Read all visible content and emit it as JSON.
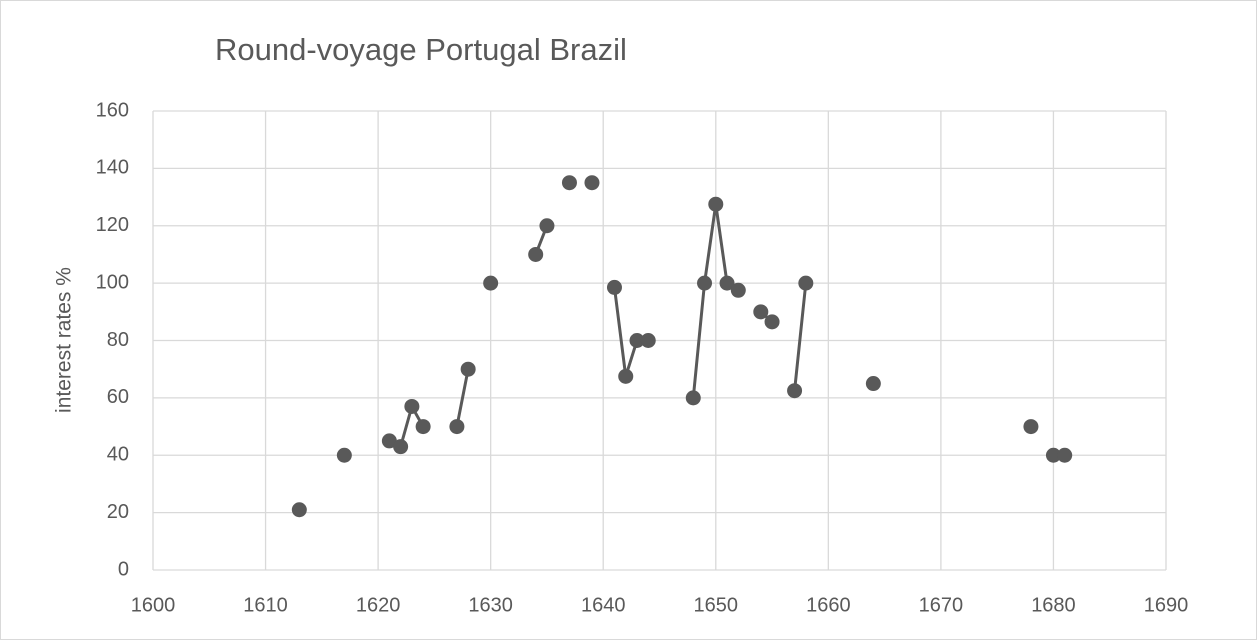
{
  "chart_data": {
    "type": "line",
    "title": "Round-voyage Portugal Brazil",
    "y_label": "interest rates %",
    "x": [
      1613,
      null,
      1617,
      null,
      1621,
      1622,
      1623,
      1624,
      null,
      1627,
      1628,
      null,
      1630,
      null,
      1634,
      1635,
      null,
      1637,
      null,
      1639,
      null,
      1641,
      1642,
      1643,
      1644,
      null,
      1648,
      1649,
      1650,
      1651,
      1652,
      null,
      1654,
      1655,
      null,
      1657,
      1658,
      null,
      1664,
      null,
      1678,
      null,
      1680,
      1681
    ],
    "series": [
      {
        "color": "#595959",
        "values": [
          21,
          null,
          40,
          null,
          45,
          43,
          57,
          50,
          null,
          50,
          70,
          null,
          100,
          null,
          110,
          120,
          null,
          135,
          null,
          135,
          null,
          98.5,
          67.5,
          80,
          80,
          null,
          60,
          100,
          127.5,
          100,
          97.5,
          null,
          90,
          86.5,
          null,
          62.5,
          100,
          null,
          65,
          null,
          50,
          null,
          40,
          40
        ]
      }
    ],
    "xlim": [
      1600,
      1690
    ],
    "xticks": [
      1600,
      1610,
      1620,
      1630,
      1640,
      1650,
      1660,
      1670,
      1680,
      1690
    ],
    "ylim": [
      0,
      160
    ],
    "yticks": [
      0,
      20,
      40,
      60,
      80,
      100,
      120,
      140,
      160
    ],
    "grid": true
  }
}
